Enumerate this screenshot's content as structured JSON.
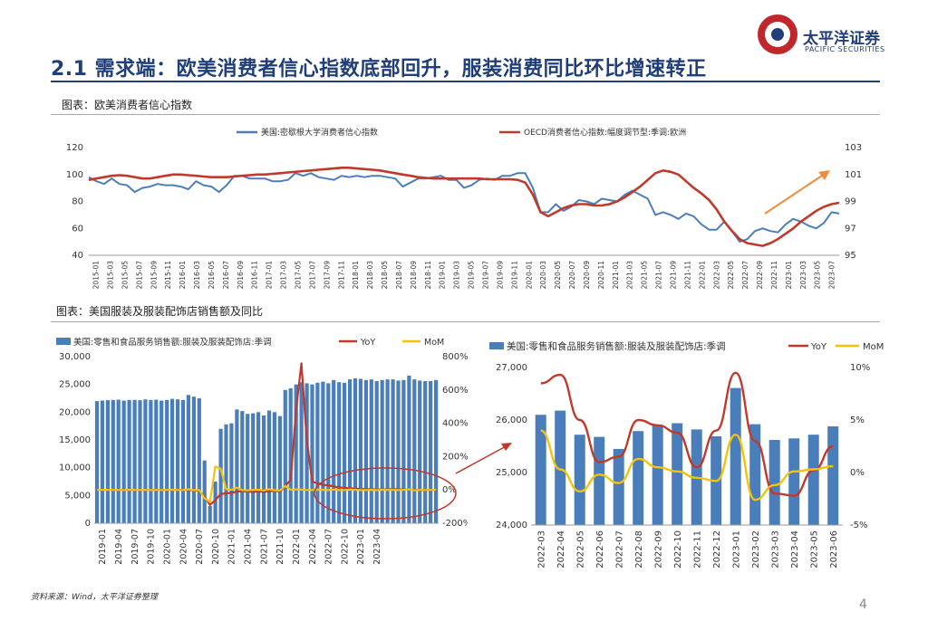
{
  "page": {
    "title": "2.1 需求端：欧美消费者信心指数底部回升，服装消费同比环比增速转正",
    "logo_cn": "太平洋证券",
    "logo_en": "PACIFIC SECURITIES",
    "source": "资料来源：Wind，太平洋证券整理",
    "page_number": "4"
  },
  "colors": {
    "blue": "#4a7ebb",
    "red": "#c0392b",
    "yellow": "#f5c20b",
    "navy": "#1f3e7a",
    "orange": "#f08c3c"
  },
  "chart_data": [
    {
      "type": "line",
      "caption": "图表：欧美消费者信心指数",
      "series": [
        {
          "name": "美国:密歇根大学消费者信心指数",
          "axis": "left",
          "values": [
            98,
            95,
            93,
            97,
            93,
            92,
            87,
            90,
            91,
            93,
            92,
            92,
            91,
            89,
            95,
            92,
            91,
            87,
            92,
            99,
            99,
            97,
            97,
            97,
            95,
            95,
            96,
            101,
            99,
            101,
            98,
            97,
            96,
            99,
            98,
            99,
            98,
            99,
            99,
            98,
            97,
            91,
            94,
            97,
            97,
            98,
            99,
            96,
            96,
            90,
            92,
            96,
            97,
            96,
            99,
            99,
            101,
            101,
            90,
            72,
            72,
            78,
            73,
            76,
            81,
            80,
            78,
            82,
            81,
            80,
            85,
            88,
            85,
            82,
            70,
            72,
            70,
            67,
            71,
            69,
            63,
            59,
            59,
            65,
            58,
            50,
            52,
            58,
            60,
            58,
            57,
            63,
            67,
            65,
            62,
            60,
            64,
            72,
            71
          ]
        },
        {
          "name": "OECD消费者信心指数:幅度调节型:季调:欧洲",
          "axis": "right",
          "values": [
            100.6,
            100.7,
            100.8,
            100.9,
            100.95,
            100.9,
            100.8,
            100.7,
            100.7,
            100.8,
            100.9,
            101.0,
            101.0,
            100.95,
            100.9,
            100.85,
            100.8,
            100.8,
            100.8,
            100.85,
            100.9,
            100.95,
            101.0,
            101.0,
            101.05,
            101.1,
            101.15,
            101.2,
            101.25,
            101.3,
            101.35,
            101.4,
            101.45,
            101.5,
            101.5,
            101.45,
            101.4,
            101.35,
            101.3,
            101.2,
            101.1,
            101.0,
            100.9,
            100.8,
            100.75,
            100.7,
            100.7,
            100.7,
            100.7,
            100.7,
            100.7,
            100.7,
            100.65,
            100.65,
            100.65,
            100.65,
            100.6,
            100.4,
            99.5,
            98.2,
            97.9,
            98.2,
            98.5,
            98.7,
            98.8,
            98.8,
            98.7,
            98.7,
            98.8,
            99.0,
            99.3,
            99.7,
            100.1,
            100.6,
            101.1,
            101.3,
            101.2,
            101.0,
            100.5,
            100.0,
            99.6,
            99.1,
            98.4,
            97.5,
            96.8,
            96.2,
            95.9,
            95.8,
            95.7,
            95.9,
            96.2,
            96.6,
            97.0,
            97.5,
            97.9,
            98.3,
            98.6,
            98.8,
            98.9
          ]
        }
      ],
      "x_labels": [
        "2015-01",
        "2015-03",
        "2015-05",
        "2015-07",
        "2015-09",
        "2015-11",
        "2016-01",
        "2016-03",
        "2016-05",
        "2016-07",
        "2016-09",
        "2016-11",
        "2017-01",
        "2017-03",
        "2017-05",
        "2017-07",
        "2017-09",
        "2017-11",
        "2018-01",
        "2018-03",
        "2018-05",
        "2018-07",
        "2018-09",
        "2018-11",
        "2019-01",
        "2019-03",
        "2019-05",
        "2019-07",
        "2019-09",
        "2019-11",
        "2020-01",
        "2020-03",
        "2020-05",
        "2020-07",
        "2020-09",
        "2020-11",
        "2021-01",
        "2021-03",
        "2021-05",
        "2021-07",
        "2021-09",
        "2021-11",
        "2022-01",
        "2022-03",
        "2022-05",
        "2022-07",
        "2022-09",
        "2022-11",
        "2023-01",
        "2023-03",
        "2023-05",
        "2023-07"
      ],
      "left_axis": {
        "ylim": [
          40,
          120
        ],
        "ticks": [
          "40",
          "60",
          "80",
          "100",
          "120"
        ]
      },
      "right_axis": {
        "ylim": [
          95,
          103
        ],
        "ticks": [
          "95",
          "97",
          "99",
          "101",
          "103"
        ]
      }
    },
    {
      "type": "bar",
      "caption": "图表：美国服装及服装配饰店销售额及同比",
      "legend": {
        "bar": "美国:零售和食品服务销售额:服装及服装配饰店:季调",
        "yoy": "YoY",
        "mom": "MoM"
      },
      "bars": [
        22000,
        22100,
        22150,
        22200,
        22250,
        22100,
        22200,
        22200,
        22150,
        22300,
        22200,
        22250,
        22100,
        22200,
        22400,
        22300,
        22200,
        23100,
        22800,
        22500,
        11300,
        3100,
        7500,
        17000,
        17800,
        18000,
        20500,
        20200,
        19700,
        19800,
        20000,
        19400,
        20300,
        20000,
        19300,
        24000,
        24300,
        25000,
        25400,
        25200,
        25000,
        25300,
        25500,
        25200,
        25800,
        25400,
        25300,
        25900,
        26100,
        26000,
        25800,
        25900,
        25600,
        25800,
        25900,
        25900,
        25700,
        25800,
        26600,
        25900,
        25700,
        25600,
        25600,
        25800
      ],
      "yoy": [
        0,
        0,
        0,
        0,
        0,
        0,
        0,
        0,
        0,
        0,
        0,
        0,
        0,
        0,
        0,
        0,
        0,
        0,
        -2,
        -5,
        -40,
        -90,
        -60,
        -25,
        -20,
        -18,
        -10,
        -8,
        -10,
        -12,
        -9,
        -12,
        -8,
        -5,
        -10,
        25,
        60,
        480,
        760,
        300,
        50,
        40,
        30,
        28,
        20,
        15,
        12,
        10,
        8,
        6,
        5,
        4,
        3,
        2,
        4,
        5,
        4,
        3,
        2,
        0,
        -2,
        -1,
        0,
        1
      ],
      "mom": [
        0,
        0.5,
        0.3,
        0.2,
        0.2,
        -0.5,
        0.4,
        0,
        -0.2,
        0.6,
        -0.4,
        0.2,
        -0.6,
        0.4,
        0.9,
        -0.4,
        -0.4,
        4,
        -1.3,
        -1.3,
        -50,
        -72,
        140,
        127,
        5,
        1,
        14,
        -1,
        -2.5,
        0.5,
        1,
        -3,
        4.6,
        -1.5,
        -3.5,
        24,
        1.2,
        3,
        1.6,
        -0.8,
        -0.8,
        1.2,
        0.8,
        -1.2,
        2.4,
        -1.6,
        -0.4,
        2.4,
        0.8,
        -0.4,
        -0.8,
        0.4,
        -1.2,
        0.8,
        0.4,
        0,
        -0.8,
        0.4,
        3.1,
        -2.6,
        -0.8,
        -0.4,
        0,
        0.8
      ],
      "x_labels": [
        "2019-01",
        "2019-04",
        "2019-07",
        "2019-10",
        "2020-01",
        "2020-04",
        "2020-07",
        "2020-10",
        "2021-01",
        "2021-04",
        "2021-07",
        "2021-10",
        "2022-01",
        "2022-04",
        "2022-07",
        "2022-10",
        "2023-01",
        "2023-04"
      ],
      "left_axis": {
        "ylim": [
          0,
          30000
        ],
        "ticks": [
          "0",
          "5,000",
          "10,000",
          "15,000",
          "20,000",
          "25,000",
          "30,000"
        ]
      },
      "right_axis": {
        "ylim": [
          -200,
          800
        ],
        "ticks": [
          "-200%",
          "0%",
          "200%",
          "400%",
          "600%",
          "800%"
        ]
      }
    },
    {
      "type": "bar",
      "legend": {
        "bar": "美国:零售和食品服务销售额:服装及服装配饰店:季调",
        "yoy": "YoY",
        "mom": "MoM"
      },
      "categories": [
        "2022-03",
        "2022-04",
        "2022-05",
        "2022-06",
        "2022-07",
        "2022-08",
        "2022-09",
        "2022-10",
        "2022-11",
        "2022-12",
        "2023-01",
        "2023-02",
        "2023-03",
        "2023-04",
        "2023-05",
        "2023-06"
      ],
      "bars": [
        26100,
        26180,
        25720,
        25680,
        25450,
        25790,
        25910,
        25940,
        25820,
        25690,
        26610,
        25920,
        25620,
        25650,
        25720,
        25880
      ],
      "yoy": [
        8.5,
        9.3,
        5.0,
        1.0,
        1.5,
        5.0,
        4.5,
        3.8,
        0.5,
        4.0,
        9.5,
        3.0,
        -2.0,
        -2.2,
        0.2,
        2.5
      ],
      "mom": [
        4.0,
        0.3,
        -1.8,
        -0.2,
        -1.0,
        1.3,
        0.5,
        0.1,
        -0.5,
        -0.8,
        3.6,
        -2.6,
        -1.2,
        0.1,
        0.3,
        0.6
      ],
      "left_axis": {
        "ylim": [
          24000,
          27000
        ],
        "ticks": [
          "24,000",
          "25,000",
          "26,000",
          "27,000"
        ]
      },
      "right_axis": {
        "ylim": [
          -5,
          10
        ],
        "ticks": [
          "-5%",
          "0%",
          "5%",
          "10%"
        ]
      }
    }
  ]
}
